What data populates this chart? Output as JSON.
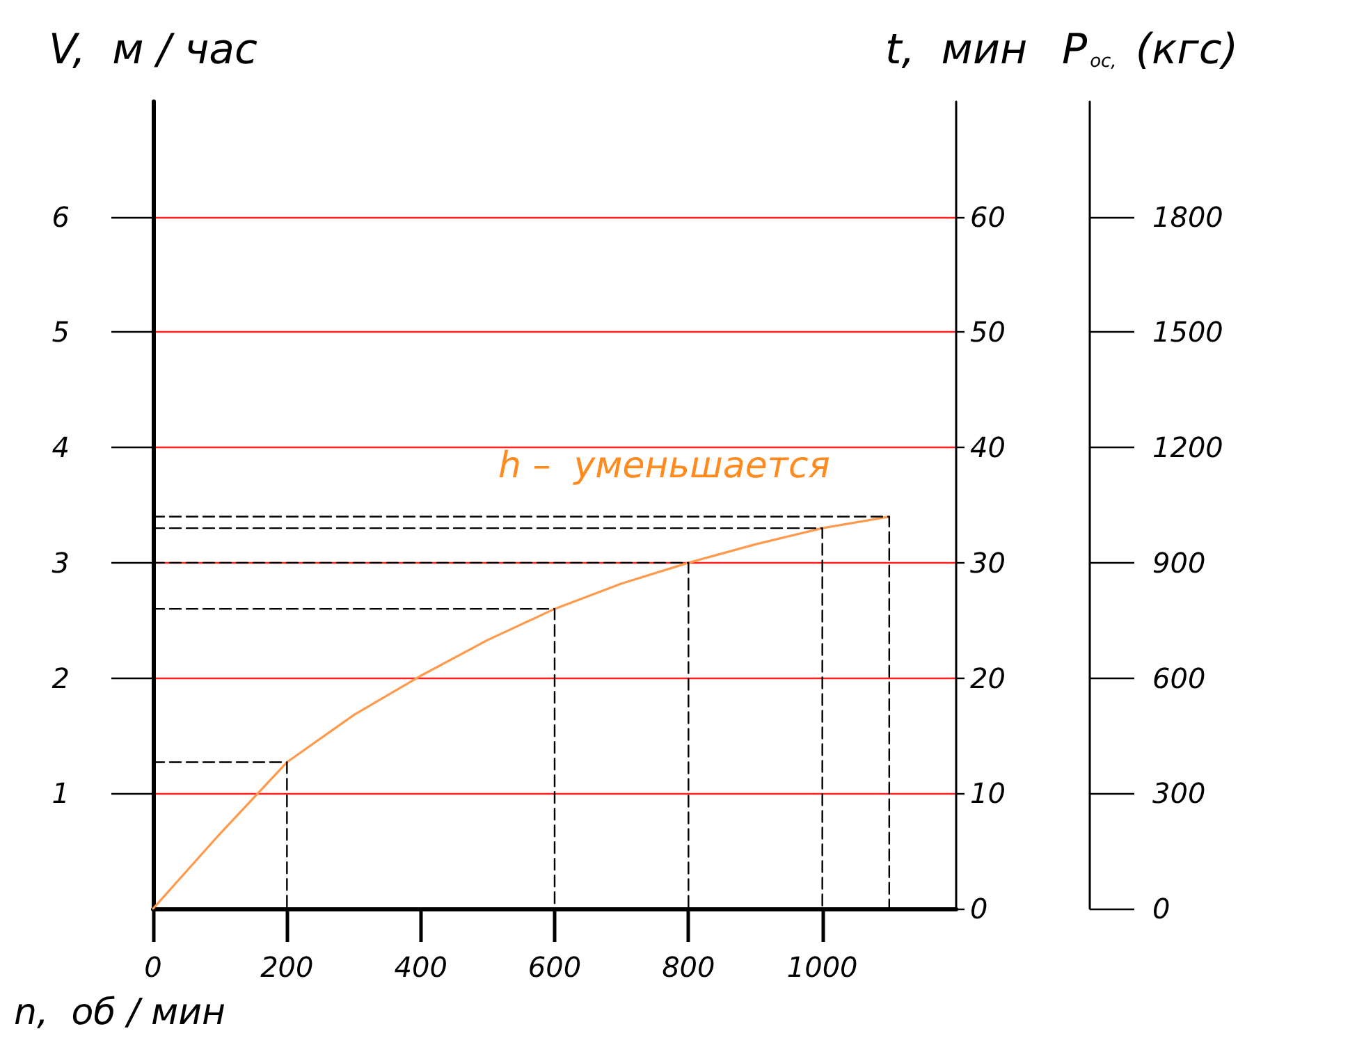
{
  "chart_data": {
    "type": "line",
    "xlabel": "n,  об / мин",
    "ylabel": "V,  м / час",
    "y2label": "t,  мин",
    "y3label": "P$_{ос,}$ (кгс)",
    "annotations": [
      "h –  уменьшается"
    ],
    "xlim": [
      0,
      1200
    ],
    "xticks": [
      0,
      200,
      400,
      600,
      800,
      1000
    ],
    "ylim": [
      0,
      7
    ],
    "yticks": [
      1,
      2,
      3,
      4,
      5,
      6
    ],
    "y2lim": [
      0,
      70
    ],
    "y2ticks": [
      0,
      10,
      20,
      30,
      40,
      50,
      60
    ],
    "y3lim": [
      0,
      2100
    ],
    "y3ticks": [
      0,
      300,
      600,
      900,
      1200,
      1500,
      1800
    ],
    "grid": "y",
    "marker": "none",
    "series": [
      {
        "color": "#ff9a4d",
        "line_style": "solid",
        "x": [
          0,
          100,
          200,
          300,
          400,
          500,
          600,
          700,
          800,
          900,
          1000,
          1100
        ],
        "values": [
          0,
          0.65,
          1.27,
          1.68,
          2.02,
          2.33,
          2.6,
          2.82,
          3.0,
          3.16,
          3.3,
          3.4
        ]
      },
      {
        "color": "#000000",
        "line_style": "dashed",
        "x": [
          0,
          200,
          200
        ],
        "values": [
          1.27,
          1.27,
          0
        ]
      },
      {
        "color": "#000000",
        "line_style": "dashed",
        "x": [
          0,
          600,
          600
        ],
        "values": [
          2.6,
          2.6,
          0
        ]
      },
      {
        "color": "#000000",
        "line_style": "dashed",
        "x": [
          0,
          800,
          800
        ],
        "values": [
          3.0,
          3.0,
          0
        ]
      },
      {
        "color": "#000000",
        "line_style": "dashed",
        "x": [
          0,
          1000,
          1000
        ],
        "values": [
          3.3,
          3.3,
          0
        ]
      },
      {
        "color": "#000000",
        "line_style": "dashed",
        "x": [
          0,
          1100,
          1100
        ],
        "values": [
          3.4,
          3.4,
          0
        ]
      }
    ]
  }
}
